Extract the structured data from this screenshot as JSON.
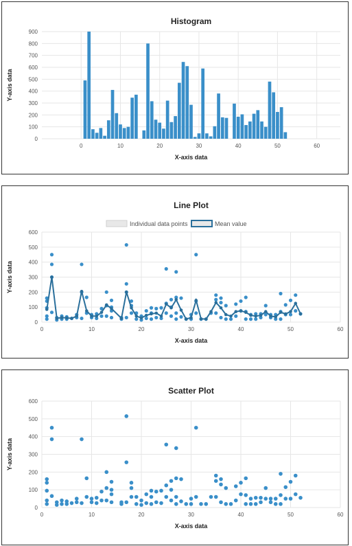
{
  "chart_data": [
    {
      "type": "bar",
      "title": "Histogram",
      "xlabel": "X-axis data",
      "ylabel": "Y-axis data",
      "xlim": [
        -10,
        66
      ],
      "ylim": [
        0,
        900
      ],
      "xticks": [
        0,
        10,
        20,
        30,
        40,
        50,
        60
      ],
      "yticks": [
        0,
        100,
        200,
        300,
        400,
        500,
        600,
        700,
        800,
        900
      ],
      "grid": true,
      "color": "#3a8fc9",
      "x": [
        1,
        2,
        3,
        4,
        5,
        6,
        7,
        8,
        9,
        10,
        11,
        12,
        13,
        14,
        16,
        17,
        18,
        19,
        20,
        21,
        22,
        23,
        24,
        25,
        26,
        27,
        28,
        29,
        30,
        31,
        32,
        33,
        34,
        35,
        36,
        37,
        39,
        40,
        41,
        42,
        43,
        44,
        45,
        46,
        47,
        48,
        49,
        50,
        51,
        52
      ],
      "values": [
        490,
        900,
        80,
        50,
        90,
        25,
        155,
        410,
        215,
        120,
        90,
        100,
        345,
        370,
        70,
        800,
        315,
        160,
        135,
        85,
        320,
        140,
        190,
        470,
        645,
        610,
        285,
        15,
        45,
        590,
        45,
        20,
        105,
        380,
        180,
        175,
        295,
        185,
        205,
        115,
        145,
        210,
        240,
        145,
        100,
        480,
        390,
        225,
        265,
        55
      ]
    },
    {
      "type": "line",
      "title": "Line Plot",
      "xlabel": "X-axis data",
      "ylabel": "Y-axis data",
      "xlim": [
        0,
        60
      ],
      "ylim": [
        0,
        600
      ],
      "xticks": [
        0,
        10,
        20,
        30,
        40,
        50,
        60
      ],
      "yticks": [
        0,
        100,
        200,
        300,
        400,
        500,
        600
      ],
      "grid": true,
      "legend_position": "top",
      "series": [
        {
          "name": "Individual data points",
          "color": "#3a8fc9",
          "points": [
            [
              1,
              160
            ],
            [
              1,
              140
            ],
            [
              1,
              95
            ],
            [
              1,
              40
            ],
            [
              1,
              20
            ],
            [
              2,
              450
            ],
            [
              2,
              385
            ],
            [
              2,
              300
            ],
            [
              2,
              65
            ],
            [
              3,
              30
            ],
            [
              3,
              15
            ],
            [
              4,
              40
            ],
            [
              4,
              20
            ],
            [
              5,
              35
            ],
            [
              5,
              20
            ],
            [
              6,
              25
            ],
            [
              7,
              50
            ],
            [
              7,
              30
            ],
            [
              8,
              385
            ],
            [
              8,
              200
            ],
            [
              8,
              25
            ],
            [
              9,
              165
            ],
            [
              9,
              60
            ],
            [
              10,
              50
            ],
            [
              10,
              30
            ],
            [
              11,
              55
            ],
            [
              11,
              25
            ],
            [
              12,
              90
            ],
            [
              12,
              40
            ],
            [
              13,
              200
            ],
            [
              13,
              110
            ],
            [
              13,
              40
            ],
            [
              14,
              145
            ],
            [
              14,
              100
            ],
            [
              14,
              75
            ],
            [
              14,
              30
            ],
            [
              16,
              30
            ],
            [
              16,
              20
            ],
            [
              17,
              515
            ],
            [
              17,
              255
            ],
            [
              17,
              200
            ],
            [
              17,
              30
            ],
            [
              18,
              140
            ],
            [
              18,
              110
            ],
            [
              18,
              60
            ],
            [
              19,
              60
            ],
            [
              19,
              20
            ],
            [
              20,
              40
            ],
            [
              20,
              15
            ],
            [
              21,
              75
            ],
            [
              21,
              25
            ],
            [
              22,
              95
            ],
            [
              22,
              60
            ],
            [
              22,
              20
            ],
            [
              23,
              90
            ],
            [
              23,
              30
            ],
            [
              24,
              95
            ],
            [
              24,
              25
            ],
            [
              25,
              355
            ],
            [
              25,
              125
            ],
            [
              25,
              60
            ],
            [
              26,
              150
            ],
            [
              26,
              100
            ],
            [
              26,
              40
            ],
            [
              27,
              335
            ],
            [
              27,
              165
            ],
            [
              27,
              60
            ],
            [
              27,
              20
            ],
            [
              28,
              160
            ],
            [
              28,
              35
            ],
            [
              29,
              20
            ],
            [
              30,
              50
            ],
            [
              30,
              20
            ],
            [
              31,
              450
            ],
            [
              31,
              140
            ],
            [
              31,
              60
            ],
            [
              32,
              20
            ],
            [
              33,
              20
            ],
            [
              34,
              60
            ],
            [
              35,
              180
            ],
            [
              35,
              150
            ],
            [
              35,
              60
            ],
            [
              36,
              160
            ],
            [
              36,
              130
            ],
            [
              36,
              30
            ],
            [
              37,
              110
            ],
            [
              37,
              20
            ],
            [
              38,
              20
            ],
            [
              39,
              120
            ],
            [
              39,
              40
            ],
            [
              40,
              140
            ],
            [
              40,
              75
            ],
            [
              41,
              165
            ],
            [
              41,
              70
            ],
            [
              41,
              20
            ],
            [
              42,
              50
            ],
            [
              42,
              20
            ],
            [
              43,
              55
            ],
            [
              43,
              20
            ],
            [
              44,
              55
            ],
            [
              44,
              30
            ],
            [
              45,
              110
            ],
            [
              45,
              50
            ],
            [
              46,
              50
            ],
            [
              46,
              30
            ],
            [
              47,
              50
            ],
            [
              47,
              20
            ],
            [
              48,
              190
            ],
            [
              48,
              70
            ],
            [
              48,
              20
            ],
            [
              49,
              115
            ],
            [
              49,
              50
            ],
            [
              50,
              145
            ],
            [
              50,
              50
            ],
            [
              51,
              180
            ],
            [
              51,
              75
            ],
            [
              52,
              55
            ]
          ]
        },
        {
          "name": "Mean value",
          "color": "#2a6f9b",
          "points": [
            [
              1,
              85
            ],
            [
              2,
              300
            ],
            [
              3,
              25
            ],
            [
              4,
              30
            ],
            [
              5,
              28
            ],
            [
              6,
              25
            ],
            [
              7,
              40
            ],
            [
              8,
              205
            ],
            [
              9,
              75
            ],
            [
              10,
              40
            ],
            [
              11,
              40
            ],
            [
              12,
              65
            ],
            [
              13,
              115
            ],
            [
              14,
              90
            ],
            [
              16,
              25
            ],
            [
              17,
              200
            ],
            [
              18,
              95
            ],
            [
              19,
              40
            ],
            [
              20,
              28
            ],
            [
              21,
              45
            ],
            [
              22,
              55
            ],
            [
              23,
              60
            ],
            [
              24,
              40
            ],
            [
              25,
              120
            ],
            [
              26,
              95
            ],
            [
              27,
              150
            ],
            [
              28,
              80
            ],
            [
              29,
              20
            ],
            [
              30,
              30
            ],
            [
              31,
              145
            ],
            [
              32,
              22
            ],
            [
              33,
              20
            ],
            [
              34,
              70
            ],
            [
              35,
              130
            ],
            [
              36,
              95
            ],
            [
              37,
              50
            ],
            [
              38,
              40
            ],
            [
              39,
              70
            ],
            [
              40,
              75
            ],
            [
              41,
              65
            ],
            [
              42,
              45
            ],
            [
              43,
              40
            ],
            [
              44,
              45
            ],
            [
              45,
              70
            ],
            [
              46,
              40
            ],
            [
              47,
              35
            ],
            [
              48,
              65
            ],
            [
              49,
              55
            ],
            [
              50,
              70
            ],
            [
              51,
              125
            ],
            [
              52,
              55
            ]
          ]
        }
      ]
    },
    {
      "type": "scatter",
      "title": "Scatter Plot",
      "xlabel": "X-axis data",
      "ylabel": "Y-axis data",
      "xlim": [
        0,
        60
      ],
      "ylim": [
        0,
        600
      ],
      "xticks": [
        0,
        10,
        20,
        30,
        40,
        50,
        60
      ],
      "yticks": [
        0,
        100,
        200,
        300,
        400,
        500,
        600
      ],
      "grid": true,
      "color": "#3a8fc9",
      "points": [
        [
          1,
          160
        ],
        [
          1,
          140
        ],
        [
          1,
          95
        ],
        [
          1,
          40
        ],
        [
          1,
          20
        ],
        [
          2,
          450
        ],
        [
          2,
          385
        ],
        [
          2,
          65
        ],
        [
          3,
          30
        ],
        [
          3,
          15
        ],
        [
          4,
          40
        ],
        [
          4,
          20
        ],
        [
          5,
          35
        ],
        [
          5,
          20
        ],
        [
          6,
          25
        ],
        [
          7,
          50
        ],
        [
          7,
          30
        ],
        [
          8,
          385
        ],
        [
          8,
          25
        ],
        [
          9,
          165
        ],
        [
          9,
          60
        ],
        [
          10,
          50
        ],
        [
          10,
          30
        ],
        [
          11,
          55
        ],
        [
          11,
          25
        ],
        [
          12,
          90
        ],
        [
          12,
          40
        ],
        [
          13,
          200
        ],
        [
          13,
          110
        ],
        [
          13,
          40
        ],
        [
          14,
          145
        ],
        [
          14,
          100
        ],
        [
          14,
          75
        ],
        [
          14,
          30
        ],
        [
          16,
          30
        ],
        [
          16,
          20
        ],
        [
          17,
          515
        ],
        [
          17,
          255
        ],
        [
          17,
          30
        ],
        [
          18,
          140
        ],
        [
          18,
          110
        ],
        [
          18,
          60
        ],
        [
          19,
          60
        ],
        [
          19,
          20
        ],
        [
          20,
          40
        ],
        [
          20,
          15
        ],
        [
          21,
          75
        ],
        [
          21,
          25
        ],
        [
          22,
          95
        ],
        [
          22,
          60
        ],
        [
          22,
          20
        ],
        [
          23,
          90
        ],
        [
          23,
          30
        ],
        [
          24,
          95
        ],
        [
          24,
          25
        ],
        [
          25,
          355
        ],
        [
          25,
          125
        ],
        [
          25,
          60
        ],
        [
          26,
          150
        ],
        [
          26,
          100
        ],
        [
          26,
          40
        ],
        [
          27,
          335
        ],
        [
          27,
          165
        ],
        [
          27,
          60
        ],
        [
          27,
          20
        ],
        [
          28,
          160
        ],
        [
          28,
          35
        ],
        [
          29,
          20
        ],
        [
          30,
          50
        ],
        [
          30,
          20
        ],
        [
          31,
          450
        ],
        [
          31,
          60
        ],
        [
          32,
          20
        ],
        [
          33,
          20
        ],
        [
          34,
          60
        ],
        [
          35,
          180
        ],
        [
          35,
          150
        ],
        [
          35,
          60
        ],
        [
          36,
          160
        ],
        [
          36,
          130
        ],
        [
          36,
          30
        ],
        [
          37,
          110
        ],
        [
          37,
          20
        ],
        [
          38,
          20
        ],
        [
          39,
          120
        ],
        [
          39,
          40
        ],
        [
          40,
          140
        ],
        [
          40,
          75
        ],
        [
          41,
          165
        ],
        [
          41,
          70
        ],
        [
          41,
          20
        ],
        [
          42,
          50
        ],
        [
          42,
          20
        ],
        [
          43,
          55
        ],
        [
          43,
          20
        ],
        [
          44,
          55
        ],
        [
          44,
          30
        ],
        [
          45,
          110
        ],
        [
          45,
          50
        ],
        [
          46,
          50
        ],
        [
          46,
          30
        ],
        [
          47,
          50
        ],
        [
          47,
          20
        ],
        [
          48,
          190
        ],
        [
          48,
          70
        ],
        [
          48,
          20
        ],
        [
          49,
          115
        ],
        [
          49,
          50
        ],
        [
          50,
          145
        ],
        [
          50,
          50
        ],
        [
          51,
          180
        ],
        [
          51,
          75
        ],
        [
          52,
          55
        ]
      ]
    }
  ]
}
